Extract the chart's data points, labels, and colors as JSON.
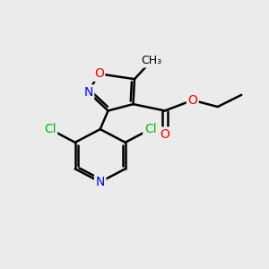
{
  "background_color": "#ebebeb",
  "bond_color": "#000000",
  "bond_width": 1.8,
  "atom_colors": {
    "O": "#ff0000",
    "N": "#0000ff",
    "Cl": "#00bb00",
    "C": "#000000"
  },
  "font_size_atom": 10,
  "font_size_small": 9,
  "figsize": [
    3.0,
    3.0
  ],
  "dpi": 100
}
